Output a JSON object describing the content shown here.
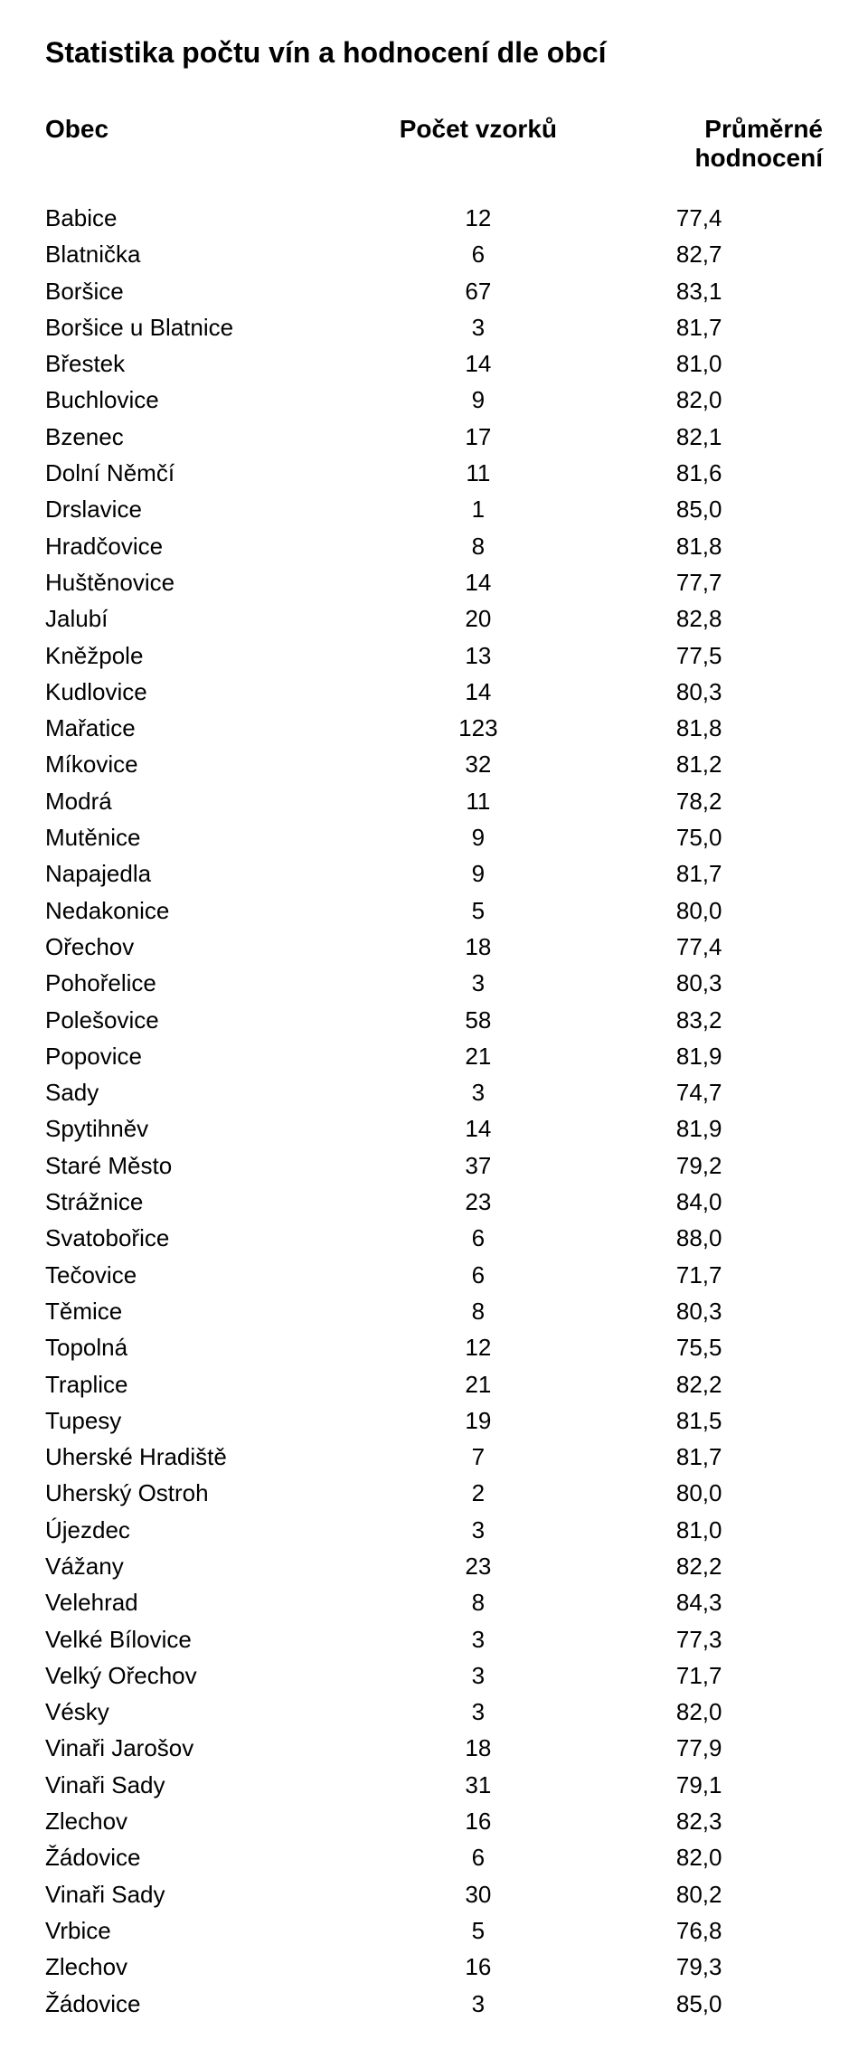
{
  "title": "Statistika počtu vín a hodnocení dle obcí",
  "table": {
    "headers": {
      "obec": "Obec",
      "pocet": "Počet vzorků",
      "hodnoceni": "Průměrné hodnocení"
    },
    "rows": [
      {
        "obec": "Babice",
        "pocet": "12",
        "hodnoceni": "77,4"
      },
      {
        "obec": "Blatnička",
        "pocet": "6",
        "hodnoceni": "82,7"
      },
      {
        "obec": "Boršice",
        "pocet": "67",
        "hodnoceni": "83,1"
      },
      {
        "obec": "Boršice u Blatnice",
        "pocet": "3",
        "hodnoceni": "81,7"
      },
      {
        "obec": "Břestek",
        "pocet": "14",
        "hodnoceni": "81,0"
      },
      {
        "obec": "Buchlovice",
        "pocet": "9",
        "hodnoceni": "82,0"
      },
      {
        "obec": "Bzenec",
        "pocet": "17",
        "hodnoceni": "82,1"
      },
      {
        "obec": "Dolní Němčí",
        "pocet": "11",
        "hodnoceni": "81,6"
      },
      {
        "obec": "Drslavice",
        "pocet": "1",
        "hodnoceni": "85,0"
      },
      {
        "obec": "Hradčovice",
        "pocet": "8",
        "hodnoceni": "81,8"
      },
      {
        "obec": "Huštěnovice",
        "pocet": "14",
        "hodnoceni": "77,7"
      },
      {
        "obec": "Jalubí",
        "pocet": "20",
        "hodnoceni": "82,8"
      },
      {
        "obec": "Kněžpole",
        "pocet": "13",
        "hodnoceni": "77,5"
      },
      {
        "obec": "Kudlovice",
        "pocet": "14",
        "hodnoceni": "80,3"
      },
      {
        "obec": "Mařatice",
        "pocet": "123",
        "hodnoceni": "81,8"
      },
      {
        "obec": "Míkovice",
        "pocet": "32",
        "hodnoceni": "81,2"
      },
      {
        "obec": "Modrá",
        "pocet": "11",
        "hodnoceni": "78,2"
      },
      {
        "obec": "Mutěnice",
        "pocet": "9",
        "hodnoceni": "75,0"
      },
      {
        "obec": "Napajedla",
        "pocet": "9",
        "hodnoceni": "81,7"
      },
      {
        "obec": "Nedakonice",
        "pocet": "5",
        "hodnoceni": "80,0"
      },
      {
        "obec": "Ořechov",
        "pocet": "18",
        "hodnoceni": "77,4"
      },
      {
        "obec": "Pohořelice",
        "pocet": "3",
        "hodnoceni": "80,3"
      },
      {
        "obec": "Polešovice",
        "pocet": "58",
        "hodnoceni": "83,2"
      },
      {
        "obec": "Popovice",
        "pocet": "21",
        "hodnoceni": "81,9"
      },
      {
        "obec": "Sady",
        "pocet": "3",
        "hodnoceni": "74,7"
      },
      {
        "obec": "Spytihněv",
        "pocet": "14",
        "hodnoceni": "81,9"
      },
      {
        "obec": "Staré Město",
        "pocet": "37",
        "hodnoceni": "79,2"
      },
      {
        "obec": "Strážnice",
        "pocet": "23",
        "hodnoceni": "84,0"
      },
      {
        "obec": "Svatobořice",
        "pocet": "6",
        "hodnoceni": "88,0"
      },
      {
        "obec": "Tečovice",
        "pocet": "6",
        "hodnoceni": "71,7"
      },
      {
        "obec": "Těmice",
        "pocet": "8",
        "hodnoceni": "80,3"
      },
      {
        "obec": "Topolná",
        "pocet": "12",
        "hodnoceni": "75,5"
      },
      {
        "obec": "Traplice",
        "pocet": "21",
        "hodnoceni": "82,2"
      },
      {
        "obec": "Tupesy",
        "pocet": "19",
        "hodnoceni": "81,5"
      },
      {
        "obec": "Uherské Hradiště",
        "pocet": "7",
        "hodnoceni": "81,7"
      },
      {
        "obec": "Uherský Ostroh",
        "pocet": "2",
        "hodnoceni": "80,0"
      },
      {
        "obec": "Újezdec",
        "pocet": "3",
        "hodnoceni": "81,0"
      },
      {
        "obec": "Vážany",
        "pocet": "23",
        "hodnoceni": "82,2"
      },
      {
        "obec": "Velehrad",
        "pocet": "8",
        "hodnoceni": "84,3"
      },
      {
        "obec": "Velké Bílovice",
        "pocet": "3",
        "hodnoceni": "77,3"
      },
      {
        "obec": "Velký Ořechov",
        "pocet": "3",
        "hodnoceni": "71,7"
      },
      {
        "obec": "Vésky",
        "pocet": "3",
        "hodnoceni": "82,0"
      },
      {
        "obec": "Vinaři Jarošov",
        "pocet": "18",
        "hodnoceni": "77,9"
      },
      {
        "obec": "Vinaři Sady",
        "pocet": "31",
        "hodnoceni": "79,1"
      },
      {
        "obec": "Zlechov",
        "pocet": "16",
        "hodnoceni": "82,3"
      },
      {
        "obec": "Žádovice",
        "pocet": "6",
        "hodnoceni": "82,0"
      },
      {
        "obec": "Vinaři Sady",
        "pocet": "30",
        "hodnoceni": "80,2"
      },
      {
        "obec": "Vrbice",
        "pocet": "5",
        "hodnoceni": "76,8"
      },
      {
        "obec": "Zlechov",
        "pocet": "16",
        "hodnoceni": "79,3"
      },
      {
        "obec": "Žádovice",
        "pocet": "3",
        "hodnoceni": "85,0"
      }
    ]
  },
  "styling": {
    "background_color": "#ffffff",
    "text_color": "#000000",
    "title_fontsize": 32,
    "header_fontsize": 28,
    "body_fontsize": 26,
    "font_family": "Arial",
    "col_widths": {
      "obec": 380,
      "pocet": 220,
      "hodnoceni": 280
    }
  }
}
